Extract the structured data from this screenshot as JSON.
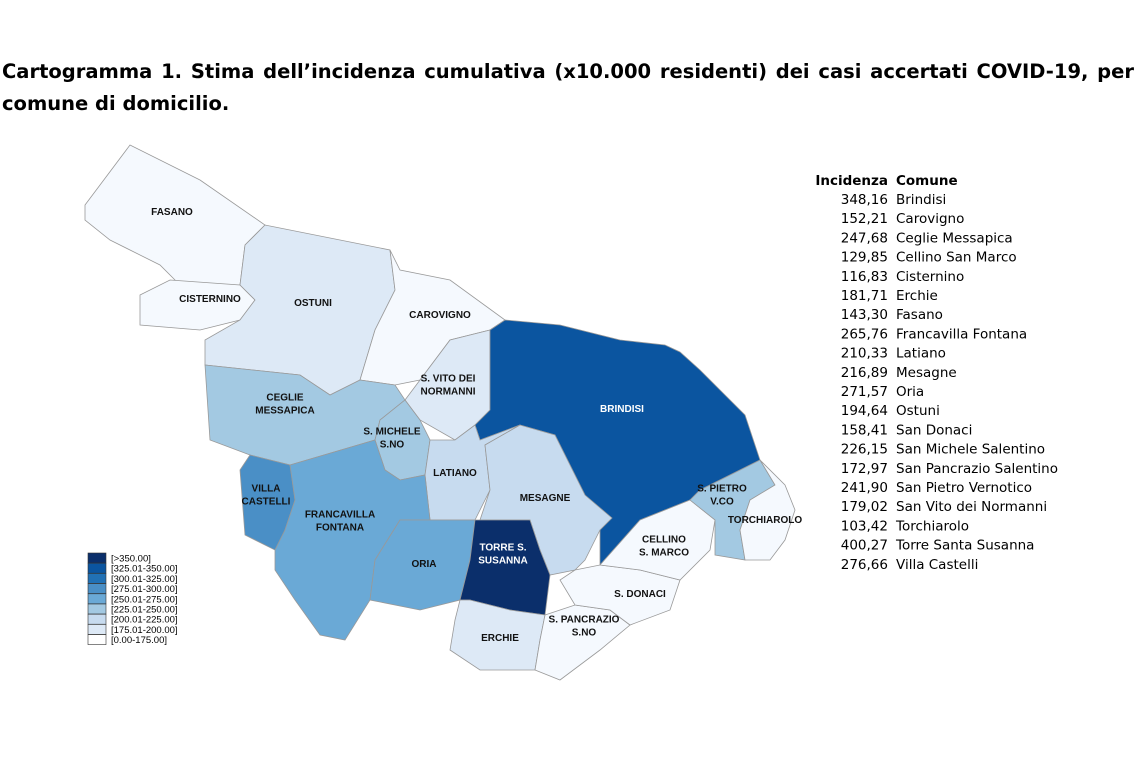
{
  "title": "Cartogramma 1. Stima dell’incidenza cumulativa (x10.000 residenti) dei casi accertati COVID-19, per comune di domicilio.",
  "map": {
    "regions": [
      {
        "label": [
          "FASANO"
        ],
        "color": "#f5f9fe"
      },
      {
        "label": [
          "CISTERNINO"
        ],
        "color": "#f5f9fe"
      },
      {
        "label": [
          "OSTUNI"
        ],
        "color": "#dde9f6"
      },
      {
        "label": [
          "CAROVIGNO"
        ],
        "color": "#f5f9fe"
      },
      {
        "label": [
          "S. VITO DEI",
          "NORMANNI"
        ],
        "color": "#dde9f6"
      },
      {
        "label": [
          "CEGLIE",
          "MESSAPICA"
        ],
        "color": "#a3c9e2"
      },
      {
        "label": [
          "S. MICHELE",
          "S.NO"
        ],
        "color": "#a3c9e2"
      },
      {
        "label": [
          "BRINDISI"
        ],
        "color": "#0b55a0"
      },
      {
        "label": [
          "LATIANO"
        ],
        "color": "#c7dbef"
      },
      {
        "label": [
          "MESAGNE"
        ],
        "color": "#c7dbef"
      },
      {
        "label": [
          "VILLA",
          "CASTELLI"
        ],
        "color": "#4a8fc6"
      },
      {
        "label": [
          "FRANCAVILLA",
          "FONTANA"
        ],
        "color": "#6aa9d6"
      },
      {
        "label": [
          "ORIA"
        ],
        "color": "#6aa9d6"
      },
      {
        "label": [
          "TORRE S.",
          "SUSANNA"
        ],
        "color": "#0b2f6b"
      },
      {
        "label": [
          "ERCHIE"
        ],
        "color": "#dde9f6"
      },
      {
        "label": [
          "S. PANCRAZIO",
          "S.NO"
        ],
        "color": "#f5f9fe"
      },
      {
        "label": [
          "S. DONACI"
        ],
        "color": "#f5f9fe"
      },
      {
        "label": [
          "CELLINO",
          "S. MARCO"
        ],
        "color": "#f5f9fe"
      },
      {
        "label": [
          "S. PIETRO",
          "V.CO"
        ],
        "color": "#a3c9e2"
      },
      {
        "label": [
          "TORCHIAROLO"
        ],
        "color": "#f5f9fe"
      }
    ],
    "legend": [
      {
        "label": "[>350.00]",
        "color": "#0b2f6b"
      },
      {
        "label": "[325.01-350.00]",
        "color": "#0b55a0"
      },
      {
        "label": "[300.01-325.00]",
        "color": "#2171b5"
      },
      {
        "label": "[275.01-300.00]",
        "color": "#4a8fc6"
      },
      {
        "label": "[250.01-275.00]",
        "color": "#6aa9d6"
      },
      {
        "label": "[225.01-250.00]",
        "color": "#a3c9e2"
      },
      {
        "label": "[200.01-225.00]",
        "color": "#c7dbef"
      },
      {
        "label": "[175.01-200.00]",
        "color": "#dde9f6"
      },
      {
        "label": "[0.00-175.00]",
        "color": "#ffffff"
      }
    ]
  },
  "table": {
    "header": [
      "Incidenza",
      "Comune"
    ],
    "rows": [
      [
        "348,16",
        "Brindisi"
      ],
      [
        "152,21",
        "Carovigno"
      ],
      [
        "247,68",
        "Ceglie Messapica"
      ],
      [
        "129,85",
        "Cellino San Marco"
      ],
      [
        "116,83",
        "Cisternino"
      ],
      [
        "181,71",
        "Erchie"
      ],
      [
        "143,30",
        "Fasano"
      ],
      [
        "265,76",
        "Francavilla Fontana"
      ],
      [
        "210,33",
        "Latiano"
      ],
      [
        "216,89",
        "Mesagne"
      ],
      [
        "271,57",
        "Oria"
      ],
      [
        "194,64",
        "Ostuni"
      ],
      [
        "158,41",
        "San Donaci"
      ],
      [
        "226,15",
        "San Michele Salentino"
      ],
      [
        "172,97",
        "San Pancrazio Salentino"
      ],
      [
        "241,90",
        "San Pietro Vernotico"
      ],
      [
        "179,02",
        "San Vito dei Normanni"
      ],
      [
        "103,42",
        "Torchiarolo"
      ],
      [
        "400,27",
        "Torre Santa Susanna"
      ],
      [
        "276,66",
        "Villa Castelli"
      ]
    ]
  }
}
